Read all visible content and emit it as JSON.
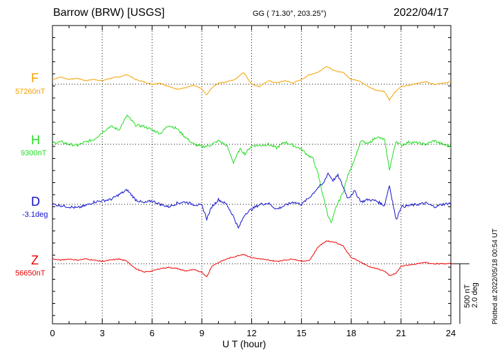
{
  "header": {
    "station": "Barrow (BRW)  [USGS]",
    "coords": "GG ( 71.30°, 203.25°)",
    "date": "2022/04/17"
  },
  "footer": {
    "plotted": "Plotted at 2022/05/18 00:54 UT"
  },
  "scale": {
    "nt": "500 nT",
    "deg": "2.0 deg"
  },
  "chart_data": {
    "type": "line",
    "xlabel": "U T (hour)",
    "xlim": [
      0,
      24
    ],
    "xticks": [
      "0",
      "3",
      "6",
      "9",
      "12",
      "15",
      "18",
      "21",
      "24"
    ],
    "grid": true,
    "series": [
      {
        "name": "F",
        "baseline_label": "57260nT",
        "color": "#f5a000",
        "x": [
          0,
          0.5,
          1,
          1.5,
          2,
          2.5,
          3,
          3.5,
          4,
          4.5,
          5,
          5.5,
          6,
          6.5,
          7,
          7.5,
          8,
          8.5,
          9,
          9.3,
          9.6,
          10,
          10.5,
          11,
          11.5,
          12,
          12.5,
          13,
          13.5,
          14,
          14.5,
          15,
          15.5,
          16,
          16.5,
          17,
          17.5,
          18,
          18.5,
          19,
          19.5,
          20,
          20.3,
          20.6,
          21,
          21.5,
          22,
          22.5,
          23,
          23.5,
          24
        ],
        "values": [
          40,
          60,
          40,
          50,
          30,
          40,
          30,
          50,
          60,
          80,
          40,
          20,
          0,
          10,
          -20,
          -40,
          -30,
          -10,
          -40,
          -90,
          -30,
          10,
          20,
          40,
          100,
          0,
          -20,
          30,
          10,
          30,
          10,
          40,
          80,
          100,
          150,
          110,
          100,
          40,
          30,
          -20,
          -50,
          -60,
          -130,
          -70,
          -20,
          -10,
          10,
          20,
          0,
          10,
          20
        ]
      },
      {
        "name": "H",
        "baseline_label": "9300nT",
        "color": "#22dd22",
        "x": [
          0,
          0.5,
          1,
          1.5,
          2,
          2.5,
          3,
          3.5,
          4,
          4.5,
          5,
          5.5,
          6,
          6.5,
          7,
          7.5,
          8,
          8.5,
          9,
          9.5,
          10,
          10.5,
          10.9,
          11.3,
          11.6,
          12,
          12.5,
          13,
          13.5,
          14,
          14.5,
          15,
          15.3,
          15.7,
          16,
          16.3,
          16.6,
          16.8,
          17.1,
          17.5,
          17.8,
          18.2,
          18.6,
          19,
          19.5,
          20,
          20.3,
          20.7,
          21,
          21.5,
          22,
          22.5,
          23,
          23.5,
          24
        ],
        "values": [
          10,
          20,
          0,
          -10,
          20,
          40,
          100,
          150,
          120,
          240,
          160,
          150,
          120,
          90,
          160,
          130,
          60,
          0,
          -20,
          -10,
          30,
          -10,
          -150,
          -40,
          -80,
          -10,
          -10,
          0,
          -30,
          20,
          -10,
          -40,
          -80,
          -120,
          -250,
          -430,
          -590,
          -660,
          -520,
          -400,
          -260,
          -120,
          30,
          0,
          60,
          40,
          -210,
          30,
          -10,
          20,
          10,
          0,
          30,
          0,
          -20
        ]
      },
      {
        "name": "D",
        "baseline_label": "-3.1deg",
        "color": "#1010cc",
        "x": [
          0,
          0.5,
          1,
          1.5,
          2,
          2.5,
          3,
          3.5,
          4,
          4.5,
          5,
          5.5,
          6,
          6.5,
          7,
          7.5,
          8,
          8.5,
          9,
          9.3,
          9.6,
          10,
          10.5,
          10.9,
          11.2,
          11.6,
          12,
          12.5,
          13,
          13.5,
          14,
          14.5,
          15,
          15.5,
          16,
          16.3,
          16.6,
          16.9,
          17.2,
          17.5,
          17.8,
          18.2,
          18.6,
          19,
          19.5,
          20,
          20.3,
          20.7,
          21,
          21.5,
          22,
          22.5,
          23,
          23.5,
          24
        ],
        "values": [
          0,
          -10,
          -20,
          -30,
          -10,
          20,
          30,
          40,
          80,
          120,
          40,
          10,
          30,
          0,
          -20,
          10,
          20,
          0,
          -10,
          -120,
          -20,
          40,
          0,
          -100,
          -200,
          -80,
          -40,
          0,
          10,
          -40,
          -10,
          20,
          0,
          60,
          140,
          170,
          260,
          200,
          240,
          150,
          50,
          110,
          20,
          40,
          30,
          -10,
          160,
          -130,
          -20,
          -10,
          0,
          10,
          -20,
          0,
          10
        ]
      },
      {
        "name": "Z",
        "baseline_label": "56650nT",
        "color": "#ee0000",
        "x": [
          0,
          0.5,
          1,
          1.5,
          2,
          2.5,
          3,
          3.5,
          4,
          4.5,
          5,
          5.5,
          6,
          6.5,
          7,
          7.5,
          8,
          8.5,
          9,
          9.3,
          9.6,
          10,
          10.5,
          11,
          11.5,
          12,
          12.5,
          13,
          13.5,
          14,
          14.5,
          15,
          15.5,
          16,
          16.5,
          17,
          17.5,
          18,
          18.5,
          19,
          19.5,
          20,
          20.3,
          20.7,
          21,
          21.5,
          22,
          22.5,
          23,
          23.5,
          24
        ],
        "values": [
          40,
          30,
          40,
          30,
          40,
          30,
          20,
          30,
          40,
          20,
          -40,
          -70,
          -60,
          -40,
          -30,
          -40,
          -60,
          -50,
          -70,
          -110,
          -20,
          10,
          40,
          60,
          80,
          50,
          40,
          30,
          20,
          30,
          40,
          20,
          30,
          140,
          190,
          180,
          150,
          50,
          20,
          -20,
          -40,
          -60,
          -100,
          -80,
          -20,
          -10,
          0,
          10,
          0,
          0,
          0
        ]
      }
    ]
  }
}
